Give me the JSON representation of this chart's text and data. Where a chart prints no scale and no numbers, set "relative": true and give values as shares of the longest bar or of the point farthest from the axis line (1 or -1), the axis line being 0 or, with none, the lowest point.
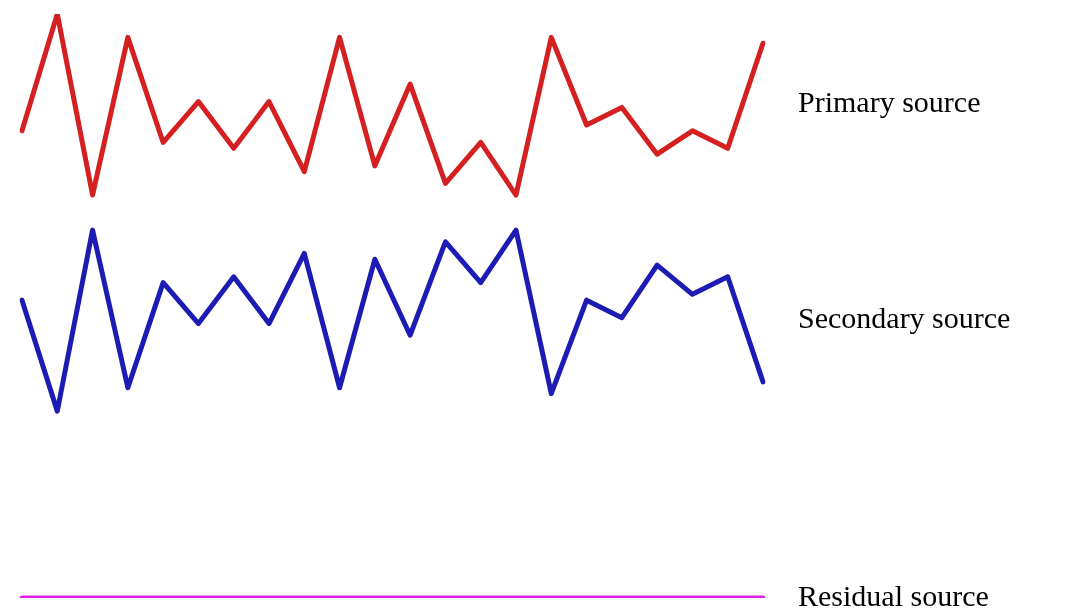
{
  "chart_data": {
    "type": "line",
    "relative": true,
    "legend": false,
    "marker": "none",
    "categories": [
      null,
      null,
      null,
      null,
      null,
      null,
      null,
      null,
      null,
      null,
      null,
      null,
      null,
      null,
      null,
      null,
      null,
      null,
      null,
      null,
      null,
      null
    ],
    "series": [
      {
        "name": "Primary source",
        "color": "#d42020",
        "values": [
          0.8,
          1.0,
          0.69,
          0.96,
          0.78,
          0.85,
          0.77,
          0.85,
          0.73,
          0.96,
          0.74,
          0.88,
          0.71,
          0.78,
          0.69,
          0.96,
          0.81,
          0.84,
          0.76,
          0.8,
          0.77,
          0.95
        ]
      },
      {
        "name": "Secondary source",
        "color": "#1c1cb4",
        "values": [
          0.51,
          0.32,
          0.63,
          0.36,
          0.54,
          0.47,
          0.55,
          0.47,
          0.59,
          0.36,
          0.58,
          0.45,
          0.61,
          0.54,
          0.63,
          0.35,
          0.51,
          0.48,
          0.57,
          0.52,
          0.55,
          0.37
        ]
      },
      {
        "name": "Residual source",
        "color": "#e020e0",
        "values": [
          0,
          0,
          0,
          0,
          0,
          0,
          0,
          0,
          0,
          0,
          0,
          0,
          0,
          0,
          0,
          0,
          0,
          0,
          0,
          0,
          0,
          0
        ]
      }
    ]
  }
}
